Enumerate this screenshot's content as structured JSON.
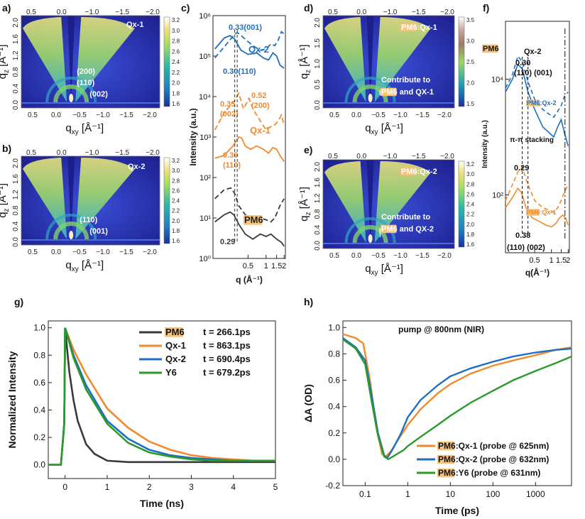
{
  "panels": {
    "a": {
      "letter": "a)",
      "sample": "Qx-1",
      "peak_labels": [
        "(200)",
        "(110)",
        "(002)"
      ],
      "xlabel": "q",
      "xsub": "xy",
      "xunit": "[Å⁻¹]",
      "ylabel": "q",
      "ysub": "z",
      "yunit": "[Å⁻¹]",
      "x_ticks": [
        "0.5",
        "0.0",
        "−0.5",
        "−1.0",
        "−1.5",
        "−2.0"
      ],
      "x_ticks_top": [
        "0.5",
        "0.0",
        "−1.0",
        "−1.5",
        "−2.0"
      ],
      "y_ticks": [
        "2.0",
        "1.6",
        "1.2",
        "0.8",
        "0.4",
        "0.0"
      ],
      "colorbar": [
        "3.2",
        "3.0",
        "2.8",
        "2.6",
        "2.4",
        "2.2",
        "2.0",
        "1.8",
        "1.6"
      ]
    },
    "b": {
      "letter": "b)",
      "sample": "Qx-2",
      "peak_labels": [
        "(110)",
        "(001)"
      ],
      "xlabel": "q",
      "xsub": "xy",
      "xunit": "[Å⁻¹]",
      "ylabel": "q",
      "ysub": "z",
      "yunit": "[Å⁻¹]",
      "x_ticks": [
        "0.5",
        "0.0",
        "−0.5",
        "−1.0",
        "−1.5",
        "−2.0"
      ],
      "x_ticks_top": [
        "0.5",
        "0.0",
        "−1.0",
        "−1.5",
        "−2.0"
      ],
      "y_ticks": [
        "2.0",
        "1.6",
        "1.2",
        "0.8",
        "0.4",
        "0.0"
      ],
      "colorbar": [
        "3.2",
        "3.0",
        "2.8",
        "2.6",
        "2.4",
        "2.2",
        "2.0",
        "1.8",
        "1.6"
      ]
    },
    "d": {
      "letter": "d)",
      "sample_pre": "PM6",
      "sample_post": ":Qx-1",
      "annot_line1": "Contribute to",
      "annot_pre": "PM6",
      "annot_post": " and QX-1",
      "xlabel": "q",
      "xsub": "xy",
      "xunit": "[Å⁻¹]",
      "ylabel": "q",
      "ysub": "z",
      "yunit": "[Å⁻¹]",
      "x_ticks": [
        "0.5",
        "0.0",
        "−0.5",
        "−1.0",
        "−1.5",
        "−2.0"
      ],
      "x_ticks_top": [
        "0.5",
        "0.0",
        "−1.0",
        "−1.5",
        "−2.0"
      ],
      "y_ticks": [
        "2.0",
        "1.5",
        "1.0",
        "0.5",
        "0.0"
      ],
      "colorbar": [
        "3.5",
        "3.0",
        "2.5",
        "2.0",
        "1.5"
      ]
    },
    "e": {
      "letter": "e)",
      "sample_pre": "PM6",
      "sample_post": ":Qx-2",
      "annot_line1": "Contribute to",
      "annot_pre": "PM6",
      "annot_post": " and QX-2",
      "xlabel": "q",
      "xsub": "xy",
      "xunit": "[Å⁻¹]",
      "ylabel": "q",
      "ysub": "z",
      "yunit": "[Å⁻¹]",
      "x_ticks": [
        "0.5",
        "0.0",
        "−0.5",
        "−1.0",
        "−1.5",
        "−2.0"
      ],
      "x_ticks_top": [
        "0.5",
        "0.0",
        "−1.0",
        "−1.5",
        "−2.0"
      ],
      "y_ticks": [
        "2.0",
        "1.6",
        "1.2",
        "0.8",
        "0.4",
        "0.0"
      ],
      "colorbar": [
        "3.2",
        "3.0",
        "2.8",
        "2.6",
        "2.4",
        "2.2",
        "2.0",
        "1.8",
        "1.6"
      ]
    },
    "c": {
      "letter": "c)"
    },
    "f": {
      "letter": "f)"
    },
    "g": {
      "letter": "g)"
    },
    "h": {
      "letter": "h)"
    }
  },
  "colors": {
    "pm6": "#3a3a3a",
    "qx1": "#f28a2c",
    "qx2": "#1f6fc0",
    "y6": "#2a9a2a",
    "pm6_highlight": "#f5c27a",
    "label_pm6": "#222222"
  },
  "chart_data": [
    {
      "id": "c",
      "type": "line",
      "xscale": "log",
      "yscale": "log",
      "xlabel": "q (Å⁻¹)",
      "ylabel": "Intensity (a.u.)",
      "xlim": [
        0.13,
        2.1
      ],
      "ylim": [
        1,
        1000000
      ],
      "x_ticks": [
        "0.5",
        "1",
        "1.5",
        "2"
      ],
      "y_ticks": [
        "10⁰",
        "10¹",
        "10²",
        "10³",
        "10⁴",
        "10⁵",
        "10⁶"
      ],
      "annotations": [
        "0.33(001)",
        "0.30(110)",
        "0.35 (002)",
        "0.52 (200)",
        "0.39 (110)",
        "0.29"
      ],
      "series_labels": [
        "Qx-2",
        "Qx-1",
        "PM6"
      ],
      "series": [
        {
          "name": "Qx-2 OOP",
          "dashed": false,
          "x": [
            0.14,
            0.2,
            0.25,
            0.3,
            0.38,
            0.5,
            0.7,
            0.9,
            1.1,
            1.3,
            1.5,
            1.7,
            2.0
          ],
          "y": [
            150000,
            280000,
            320000,
            260000,
            140000,
            110000,
            120000,
            90000,
            80000,
            120000,
            100000,
            60000,
            50000
          ]
        },
        {
          "name": "Qx-2 IP",
          "dashed": true,
          "x": [
            0.14,
            0.22,
            0.3,
            0.33,
            0.36,
            0.45,
            0.6,
            0.8,
            1.0,
            1.2,
            1.4,
            1.6,
            1.8,
            2.0
          ],
          "y": [
            90000,
            200000,
            350000,
            380000,
            350000,
            260000,
            180000,
            140000,
            150000,
            200000,
            180000,
            250000,
            400000,
            350000
          ]
        },
        {
          "name": "Qx-1 OOP",
          "dashed": false,
          "x": [
            0.14,
            0.2,
            0.28,
            0.35,
            0.39,
            0.45,
            0.55,
            0.7,
            0.9,
            1.1,
            1.3,
            1.5,
            1.7,
            2.0
          ],
          "y": [
            300,
            350,
            600,
            1000,
            950,
            600,
            500,
            600,
            500,
            400,
            550,
            500,
            350,
            250
          ]
        },
        {
          "name": "Qx-1 IP",
          "dashed": true,
          "x": [
            0.14,
            0.2,
            0.3,
            0.35,
            0.42,
            0.52,
            0.6,
            0.8,
            1.0,
            1.2,
            1.4,
            1.6,
            1.8,
            2.0
          ],
          "y": [
            1500,
            4000,
            8000,
            12000,
            5000,
            9000,
            5000,
            2500,
            1500,
            1800,
            2000,
            2500,
            3500,
            2000
          ]
        },
        {
          "name": "PM6 OOP",
          "dashed": false,
          "x": [
            0.14,
            0.2,
            0.25,
            0.29,
            0.35,
            0.45,
            0.6,
            0.8,
            1.0,
            1.2,
            1.5,
            1.8,
            2.0
          ],
          "y": [
            8,
            12,
            14,
            12,
            7,
            4,
            3,
            4,
            3.5,
            4,
            3,
            2.5,
            2
          ]
        },
        {
          "name": "PM6 IP",
          "dashed": true,
          "x": [
            0.14,
            0.2,
            0.26,
            0.3,
            0.35,
            0.45,
            0.6,
            0.8,
            1.0,
            1.2,
            1.4,
            1.7,
            2.0
          ],
          "y": [
            30,
            50,
            55,
            40,
            20,
            12,
            9,
            10,
            9,
            8,
            10,
            20,
            30
          ]
        }
      ]
    },
    {
      "id": "f",
      "type": "line",
      "xscale": "log",
      "yscale": "log",
      "xlabel": "q(Å⁻¹)",
      "ylabel": "Intensity (a.u.)",
      "xlim": [
        0.15,
        2.1
      ],
      "ylim": [
        10,
        100000
      ],
      "x_ticks": [
        "0.5",
        "1",
        "1.5",
        "2"
      ],
      "y_ticks": [
        "10²",
        "10⁴"
      ],
      "annotations": [
        "PM6",
        "Qx-2",
        "0.30",
        "(110) (001)",
        "π-π stacking",
        "0.29",
        "0.38",
        "(110) (002)"
      ],
      "series_labels": [
        "PM6:Qx-2",
        "PM6:Qx-1"
      ],
      "series": [
        {
          "name": "PM6:Qx-2 OOP",
          "dashed": false,
          "x": [
            0.15,
            0.2,
            0.25,
            0.3,
            0.38,
            0.5,
            0.7,
            0.9,
            1.1,
            1.3,
            1.5,
            1.7,
            2.0
          ],
          "y": [
            6000,
            10000,
            18000,
            15000,
            6000,
            3000,
            1500,
            1200,
            1000,
            1500,
            2000,
            1200,
            700
          ]
        },
        {
          "name": "PM6:Qx-2 IP",
          "dashed": true,
          "x": [
            0.15,
            0.2,
            0.25,
            0.3,
            0.38,
            0.5,
            0.7,
            0.9,
            1.1,
            1.3,
            1.5,
            1.7,
            2.0
          ],
          "y": [
            7000,
            12000,
            25000,
            20000,
            9000,
            4500,
            3000,
            2500,
            2200,
            2800,
            3500,
            5000,
            6000
          ]
        },
        {
          "name": "PM6:Qx-1 OOP",
          "dashed": false,
          "x": [
            0.15,
            0.2,
            0.25,
            0.29,
            0.35,
            0.45,
            0.6,
            0.8,
            1.0,
            1.2,
            1.4,
            1.6,
            1.8,
            2.0
          ],
          "y": [
            60,
            90,
            130,
            110,
            60,
            40,
            35,
            30,
            28,
            32,
            40,
            45,
            40,
            30
          ]
        },
        {
          "name": "PM6:Qx-1 IP",
          "dashed": true,
          "x": [
            0.15,
            0.2,
            0.25,
            0.3,
            0.38,
            0.5,
            0.7,
            0.9,
            1.1,
            1.3,
            1.5,
            1.7,
            2.0
          ],
          "y": [
            80,
            150,
            250,
            300,
            150,
            80,
            60,
            55,
            50,
            60,
            80,
            110,
            150
          ]
        }
      ]
    },
    {
      "id": "g",
      "type": "line",
      "xlabel": "Time (ns)",
      "ylabel": "Normalized Intensity",
      "xlim": [
        -0.4,
        5
      ],
      "ylim": [
        -0.1,
        1.05
      ],
      "x_ticks": [
        "0",
        "1",
        "2",
        "3",
        "4",
        "5"
      ],
      "y_ticks": [
        "0.0",
        "0.2",
        "0.4",
        "0.6",
        "0.8",
        "1.0"
      ],
      "legend_position": "top-right",
      "legend": [
        {
          "name_pre": "PM6",
          "name_post": "",
          "value": "t = 266.1ps"
        },
        {
          "name_pre": "",
          "name_post": "Qx-1",
          "value": "t = 863.1ps"
        },
        {
          "name_pre": "",
          "name_post": "Qx-2",
          "value": "t = 690.4ps"
        },
        {
          "name_pre": "",
          "name_post": "Y6",
          "value": "t = 679.2ps"
        }
      ],
      "series": [
        {
          "name": "PM6",
          "tau": 0.266,
          "x": [
            -0.4,
            -0.1,
            -0.02,
            0,
            0.1,
            0.2,
            0.3,
            0.5,
            0.7,
            1.0,
            1.5,
            2,
            3,
            4,
            5
          ],
          "y": [
            0.0,
            0.0,
            0.3,
            1.0,
            0.68,
            0.47,
            0.32,
            0.15,
            0.08,
            0.03,
            0.02,
            0.02,
            0.02,
            0.02,
            0.02
          ]
        },
        {
          "name": "Qx-1",
          "tau": 0.863,
          "x": [
            -0.4,
            -0.1,
            -0.02,
            0,
            0.2,
            0.5,
            1.0,
            1.5,
            2.0,
            2.5,
            3.0,
            3.5,
            4.0,
            4.5,
            5
          ],
          "y": [
            0.0,
            0.0,
            0.3,
            1.0,
            0.84,
            0.66,
            0.41,
            0.27,
            0.17,
            0.11,
            0.07,
            0.05,
            0.04,
            0.03,
            0.03
          ]
        },
        {
          "name": "Qx-2",
          "tau": 0.69,
          "x": [
            -0.4,
            -0.1,
            -0.02,
            0,
            0.2,
            0.5,
            1.0,
            1.5,
            2.0,
            2.5,
            3.0,
            3.5,
            4.0,
            4.5,
            5
          ],
          "y": [
            0.0,
            0.0,
            0.3,
            1.0,
            0.8,
            0.58,
            0.32,
            0.19,
            0.11,
            0.07,
            0.05,
            0.04,
            0.03,
            0.03,
            0.03
          ]
        },
        {
          "name": "Y6",
          "tau": 0.679,
          "x": [
            -0.4,
            -0.1,
            -0.02,
            0,
            0.2,
            0.5,
            1.0,
            1.5,
            2.0,
            2.5,
            3.0,
            3.5,
            4.0,
            4.5,
            5
          ],
          "y": [
            0.0,
            0.0,
            0.3,
            1.0,
            0.78,
            0.55,
            0.3,
            0.16,
            0.09,
            0.06,
            0.04,
            0.03,
            0.03,
            0.03,
            0.03
          ]
        }
      ]
    },
    {
      "id": "h",
      "type": "line",
      "xscale": "log",
      "title": "pump @ 800nm (NIR)",
      "xlabel": "Time (ps)",
      "ylabel": "ΔA (OD)",
      "xlim": [
        0.03,
        7000
      ],
      "ylim": [
        -0.2,
        1.05
      ],
      "x_ticks": [
        "0.1",
        "1",
        "10",
        "100",
        "1000"
      ],
      "y_ticks": [
        "-0.2",
        "0.0",
        "0.2",
        "0.4",
        "0.6",
        "0.8",
        "1.0"
      ],
      "legend_position": "bottom-right",
      "legend": [
        {
          "name_pre": "PM6",
          "name_post": ":Qx-1 (probe @ 625nm)"
        },
        {
          "name_pre": "PM6",
          "name_post": ":Qx-2 (probe @ 632nm)"
        },
        {
          "name_pre": "PM6",
          "name_post": ":Y6 (probe @ 631nm)"
        }
      ],
      "series": [
        {
          "name": "PM6:Qx-1",
          "x": [
            0.03,
            0.06,
            0.09,
            0.13,
            0.18,
            0.25,
            0.3,
            0.4,
            0.6,
            1,
            2,
            5,
            10,
            30,
            100,
            300,
            1000,
            3000,
            7000
          ],
          "y": [
            0.95,
            0.92,
            0.88,
            0.6,
            0.25,
            0.04,
            0.02,
            0.06,
            0.15,
            0.26,
            0.38,
            0.5,
            0.57,
            0.65,
            0.71,
            0.75,
            0.79,
            0.83,
            0.85
          ]
        },
        {
          "name": "PM6:Qx-2",
          "x": [
            0.03,
            0.06,
            0.1,
            0.14,
            0.2,
            0.28,
            0.33,
            0.45,
            0.7,
            1,
            2,
            5,
            10,
            30,
            100,
            300,
            1000,
            3000,
            7000
          ],
          "y": [
            0.92,
            0.85,
            0.75,
            0.5,
            0.2,
            0.03,
            0.01,
            0.08,
            0.2,
            0.32,
            0.45,
            0.56,
            0.63,
            0.69,
            0.74,
            0.78,
            0.81,
            0.83,
            0.84
          ]
        },
        {
          "name": "PM6:Y6",
          "x": [
            0.03,
            0.06,
            0.1,
            0.14,
            0.2,
            0.28,
            0.35,
            0.5,
            0.8,
            1,
            2,
            5,
            10,
            30,
            100,
            300,
            1000,
            3000,
            7000
          ],
          "y": [
            0.91,
            0.84,
            0.72,
            0.45,
            0.18,
            0.02,
            0.0,
            0.03,
            0.07,
            0.1,
            0.17,
            0.26,
            0.33,
            0.43,
            0.52,
            0.6,
            0.67,
            0.73,
            0.78
          ]
        }
      ]
    }
  ]
}
